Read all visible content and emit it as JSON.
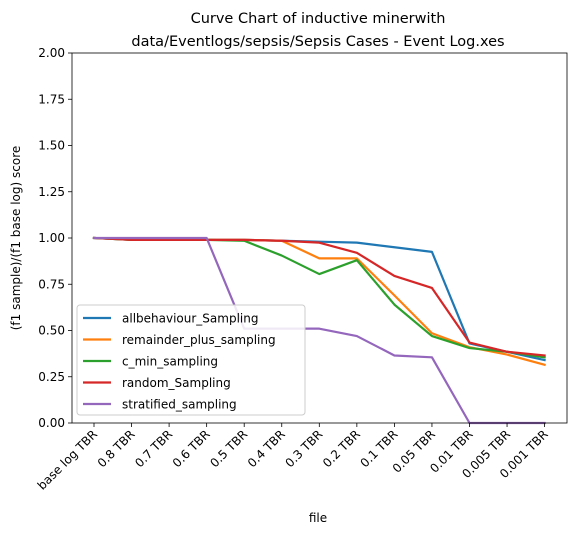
{
  "chart_data": {
    "type": "line",
    "title_lines": [
      "Curve Chart of inductive minerwith",
      "data/Eventlogs/sepsis/Sepsis Cases - Event Log.xes"
    ],
    "xlabel": "file",
    "ylabel": "(f1 sample)/(f1 base log) score",
    "categories": [
      "base log TBR",
      "0.8 TBR",
      "0.7 TBR",
      "0.6 TBR",
      "0.5 TBR",
      "0.4 TBR",
      "0.3 TBR",
      "0.2 TBR",
      "0.1 TBR",
      "0.05 TBR",
      "0.01 TBR",
      "0.005 TBR",
      "0.001 TBR"
    ],
    "ylim": [
      0,
      2.0
    ],
    "yticks": [
      "0.00",
      "0.25",
      "0.50",
      "0.75",
      "1.00",
      "1.25",
      "1.50",
      "1.75",
      "2.00"
    ],
    "grid": false,
    "legend_position": "lower-left",
    "series": [
      {
        "name": "allbehaviour_Sampling",
        "color": "#1f77b4",
        "values": [
          1.0,
          0.99,
          0.99,
          0.99,
          0.99,
          0.985,
          0.98,
          0.975,
          0.95,
          0.925,
          0.43,
          0.385,
          0.34
        ]
      },
      {
        "name": "remainder_plus_sampling",
        "color": "#ff7f0e",
        "values": [
          1.0,
          0.99,
          0.99,
          0.99,
          0.99,
          0.985,
          0.89,
          0.89,
          0.69,
          0.485,
          0.41,
          0.37,
          0.315
        ]
      },
      {
        "name": "c_min_sampling",
        "color": "#2ca02c",
        "values": [
          1.0,
          0.99,
          0.99,
          0.99,
          0.985,
          0.905,
          0.805,
          0.88,
          0.64,
          0.47,
          0.405,
          0.385,
          0.355
        ]
      },
      {
        "name": "random_Sampling",
        "color": "#d62728",
        "values": [
          1.0,
          0.99,
          0.99,
          0.99,
          0.99,
          0.985,
          0.975,
          0.92,
          0.795,
          0.73,
          0.435,
          0.385,
          0.365
        ]
      },
      {
        "name": "stratified_sampling",
        "color": "#9467bd",
        "values": [
          1.0,
          1.0,
          1.0,
          1.0,
          0.51,
          0.51,
          0.51,
          0.47,
          0.365,
          0.355,
          0.0,
          0.0,
          0.0
        ]
      }
    ]
  }
}
